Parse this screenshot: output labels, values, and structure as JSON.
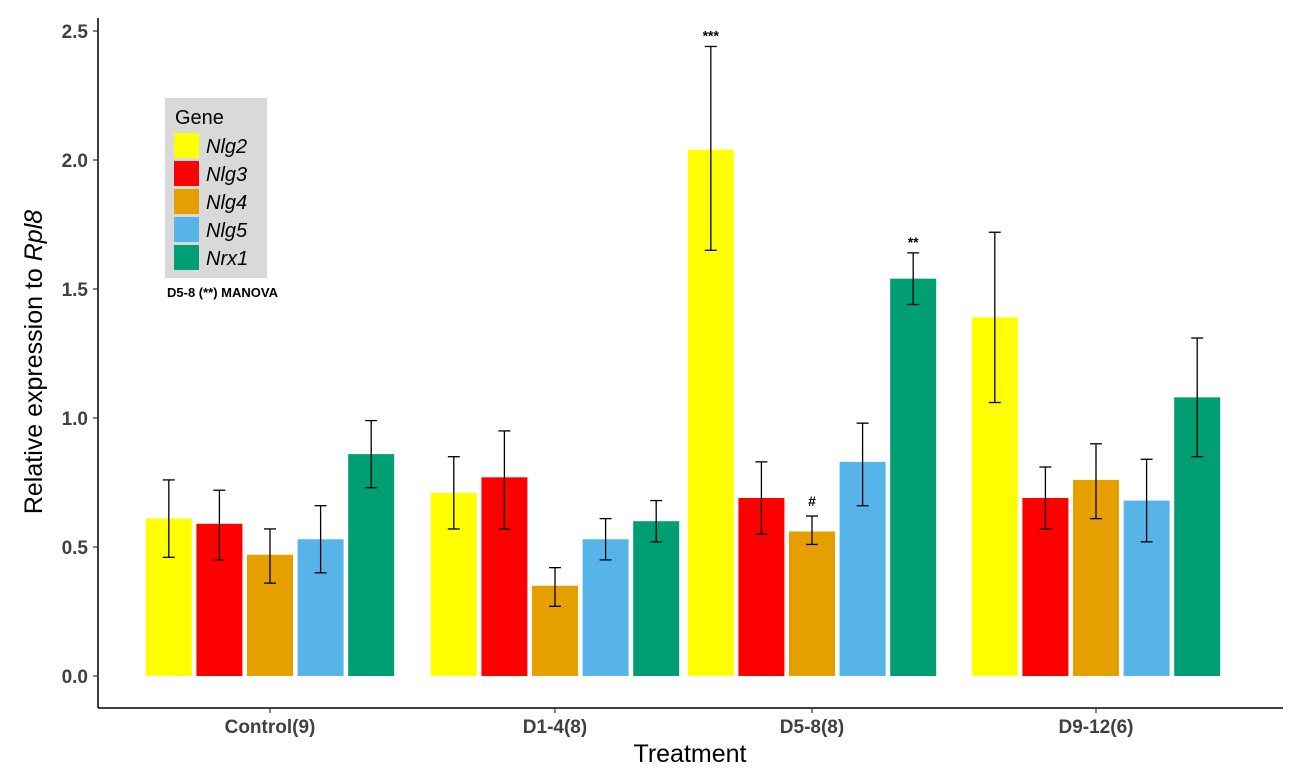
{
  "chart_data": {
    "type": "bar",
    "xlabel": "Treatment",
    "ylabel_prefix": "Relative expression to ",
    "ylabel_gene": "Rpl8",
    "ylim": [
      0,
      2.5
    ],
    "yticks": [
      "0.0",
      "0.5",
      "1.0",
      "1.5",
      "2.0",
      "2.5"
    ],
    "categories": [
      "Control(9)",
      "D1-4(8)",
      "D5-8(8)",
      "D9-12(6)"
    ],
    "legend_title": "Gene",
    "legend_position": "top-left",
    "note": "D5-8 (**) MANOVA",
    "series": [
      {
        "name": "Nlg2",
        "color": "#FFFF00",
        "values": [
          0.61,
          0.71,
          2.04,
          1.39
        ],
        "err_low": [
          0.46,
          0.57,
          1.65,
          1.06
        ],
        "err_high": [
          0.76,
          0.85,
          2.44,
          1.72
        ]
      },
      {
        "name": "Nlg3",
        "color": "#FF0000",
        "values": [
          0.59,
          0.77,
          0.69,
          0.69
        ],
        "err_low": [
          0.45,
          0.57,
          0.55,
          0.57
        ],
        "err_high": [
          0.72,
          0.95,
          0.83,
          0.81
        ]
      },
      {
        "name": "Nlg4",
        "color": "#E69F00",
        "values": [
          0.47,
          0.35,
          0.56,
          0.76
        ],
        "err_low": [
          0.36,
          0.27,
          0.51,
          0.61
        ],
        "err_high": [
          0.57,
          0.42,
          0.62,
          0.9
        ]
      },
      {
        "name": "Nlg5",
        "color": "#56B4E9",
        "values": [
          0.53,
          0.53,
          0.83,
          0.68
        ],
        "err_low": [
          0.4,
          0.45,
          0.66,
          0.52
        ],
        "err_high": [
          0.66,
          0.61,
          0.98,
          0.84
        ]
      },
      {
        "name": "Nrx1",
        "color": "#009E73",
        "values": [
          0.86,
          0.6,
          1.54,
          1.08
        ],
        "err_low": [
          0.73,
          0.52,
          1.44,
          0.85
        ],
        "err_high": [
          0.99,
          0.68,
          1.64,
          1.31
        ]
      }
    ],
    "annotations": [
      {
        "category": "D5-8(8)",
        "series": "Nlg2",
        "text": "***"
      },
      {
        "category": "D5-8(8)",
        "series": "Nlg4",
        "text": "#"
      },
      {
        "category": "D5-8(8)",
        "series": "Nrx1",
        "text": "**"
      }
    ]
  }
}
